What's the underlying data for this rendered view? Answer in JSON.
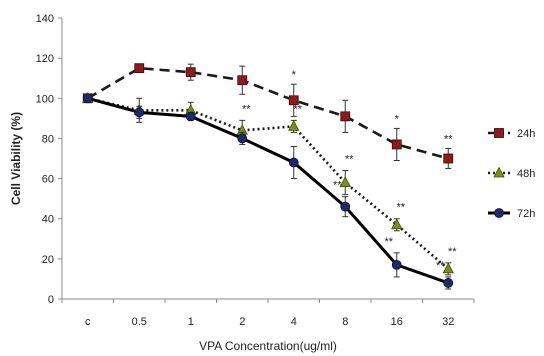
{
  "chart_data": {
    "type": "line",
    "title": "",
    "xlabel": "VPA Concentration(ug/ml)",
    "ylabel": "Cell Viability (%)",
    "categories": [
      "c",
      "0.5",
      "1",
      "2",
      "4",
      "8",
      "16",
      "32"
    ],
    "ylim": [
      0,
      140
    ],
    "yticks": [
      0,
      20,
      40,
      60,
      80,
      100,
      120,
      140
    ],
    "grid": false,
    "legend_position": "right",
    "series": [
      {
        "name": "24h",
        "values": [
          100,
          115,
          113,
          109,
          99,
          91,
          77,
          70
        ],
        "errors": [
          2,
          2,
          4,
          7,
          8,
          8,
          8,
          5
        ],
        "color": "#1a1a1a",
        "marker_color": "#8b1c1c",
        "line_style": "dashed",
        "marker": "square",
        "annotations": [
          "",
          "",
          "",
          "",
          "*",
          "",
          "*",
          "**"
        ]
      },
      {
        "name": "48h",
        "values": [
          100,
          94,
          94,
          84,
          86,
          58,
          37,
          15
        ],
        "errors": [
          2,
          6,
          4,
          5,
          3,
          6,
          3,
          3
        ],
        "color": "#1a1a1a",
        "marker_color": "#7a8f1c",
        "line_style": "dotted",
        "marker": "triangle",
        "annotations": [
          "",
          "",
          "",
          "**",
          "**",
          "**",
          "**",
          "**"
        ]
      },
      {
        "name": "72h",
        "values": [
          100,
          93,
          91,
          80,
          68,
          46,
          17,
          8
        ],
        "errors": [
          2,
          3,
          2,
          3,
          8,
          5,
          6,
          3
        ],
        "color": "#000000",
        "marker_color": "#1f2a66",
        "line_style": "solid",
        "marker": "circle",
        "annotations": [
          "",
          "",
          "",
          "",
          "",
          "**",
          "**",
          "**"
        ]
      }
    ]
  }
}
